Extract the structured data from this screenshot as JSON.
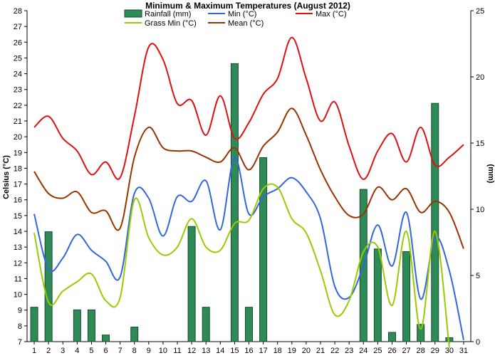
{
  "chart_data": {
    "type": "bar+line",
    "title": "Minimum & Maximum Temperatures (August 2012)",
    "ylabel_left": "Celsius (°C)",
    "ylabel_right": "(mm)",
    "xlabel": "",
    "categories": [
      "1",
      "2",
      "3",
      "4",
      "5",
      "6",
      "7",
      "8",
      "9",
      "10",
      "11",
      "12",
      "13",
      "14",
      "15",
      "16",
      "17",
      "18",
      "19",
      "20",
      "21",
      "22",
      "23",
      "24",
      "25",
      "26",
      "27",
      "28",
      "29",
      "30",
      "31"
    ],
    "y_left": {
      "min": 7,
      "max": 28,
      "ticks": [
        "7",
        "8",
        "9",
        "10",
        "11",
        "12",
        "13",
        "14",
        "15",
        "16",
        "17",
        "18",
        "19",
        "20",
        "21",
        "22",
        "23",
        "24",
        "25",
        "26",
        "27",
        "28"
      ]
    },
    "y_right": {
      "min": 0,
      "max": 25,
      "ticks": [
        "0",
        "5",
        "10",
        "15",
        "20",
        "25"
      ]
    },
    "grid": false,
    "legend_position": "top",
    "series": [
      {
        "name": "Rainfall (mm)",
        "kind": "bar",
        "axis": "right",
        "color": "#2e8b57",
        "values": [
          2.6,
          8.3,
          0,
          2.4,
          2.4,
          0.5,
          0,
          1.1,
          0,
          0,
          0,
          8.7,
          2.6,
          0,
          21,
          2.6,
          13.9,
          0,
          0,
          0,
          0,
          0,
          0,
          11.5,
          7,
          0.7,
          6.8,
          1.3,
          18,
          0.3,
          0
        ]
      },
      {
        "name": "Min (°C)",
        "kind": "line",
        "axis": "left",
        "color": "#3366dd",
        "values": [
          15.1,
          11.6,
          12.3,
          13.8,
          12.8,
          12.1,
          11.1,
          16.4,
          16.1,
          13.7,
          16.2,
          15.9,
          17.2,
          14.1,
          18.7,
          15.1,
          16.2,
          16.7,
          17.4,
          16.5,
          14.8,
          10.5,
          9.8,
          11.8,
          14.4,
          11.8,
          15.2,
          9.7,
          13.6,
          11.5,
          7.1
        ]
      },
      {
        "name": "Max (°C)",
        "kind": "line",
        "axis": "left",
        "color": "#dd1111",
        "values": [
          20.6,
          21.3,
          19.9,
          19.1,
          17.6,
          18.4,
          17.4,
          21.3,
          25.7,
          24.9,
          22.1,
          22.3,
          20.1,
          22.6,
          19.9,
          20.9,
          22.7,
          23.7,
          26.3,
          23.7,
          21.0,
          22.2,
          19.4,
          17.3,
          19.1,
          20.2,
          18.4,
          20.6,
          18.2,
          18.7,
          19.5
        ]
      },
      {
        "name": "Grass Min (°C)",
        "kind": "line",
        "axis": "left",
        "color": "#99cc00",
        "values": [
          13.9,
          9.5,
          10.2,
          10.8,
          11.3,
          9.6,
          9.8,
          16.0,
          13.6,
          12.5,
          13.0,
          14.8,
          13.0,
          12.8,
          14.5,
          14.7,
          16.7,
          16.8,
          14.8,
          13.9,
          11.5,
          8.7,
          9.6,
          12.7,
          13.0,
          9.3,
          14.0,
          7.8,
          14.0,
          6.6,
          null
        ]
      },
      {
        "name": "Mean (°C)",
        "kind": "line",
        "axis": "left",
        "color": "#993300",
        "values": [
          17.8,
          16.4,
          16.1,
          16.5,
          15.2,
          15.3,
          14.2,
          18.7,
          20.6,
          19.3,
          19.1,
          19.1,
          18.7,
          18.4,
          19.3,
          17.9,
          19.4,
          20.3,
          21.8,
          20.1,
          17.9,
          16.2,
          15.0,
          15.1,
          16.8,
          16.0,
          16.7,
          15.2,
          15.9,
          15.2,
          12.9
        ]
      }
    ]
  }
}
